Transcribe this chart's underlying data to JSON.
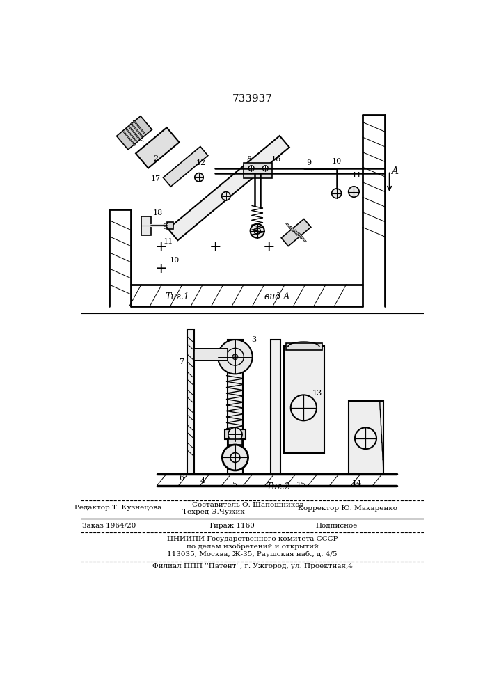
{
  "patent_number": "733937",
  "background_color": "#ffffff",
  "line_color": "#000000",
  "fig_width": 7.07,
  "fig_height": 10.0,
  "fig1_label": "Τиг.1",
  "fig2_label": "Τиг.2",
  "view_label": "вид А",
  "editor_line": "Редактор Т. Кузнецова",
  "composer_line": "Составитель О. Шапошников",
  "techred_line": "Техред Э.Чужик",
  "corrector_line": "Корректор Ю. Макаренко",
  "order_line": "Заказ 1964/20",
  "tirazh_line": "Тираж 1160",
  "podpisnoe_line": "Подписное",
  "tsniipi_line": "ЦНИИПИ Государственного комитета СССР",
  "po_delam_line": "по делам изобретений и открытий",
  "address_line": "113035, Москва, Ж-35, Раушская наб., д. 4/5",
  "filial_line": "Филиал ППП ''Патент'', г. Ужгород, ул. Проектная,4"
}
